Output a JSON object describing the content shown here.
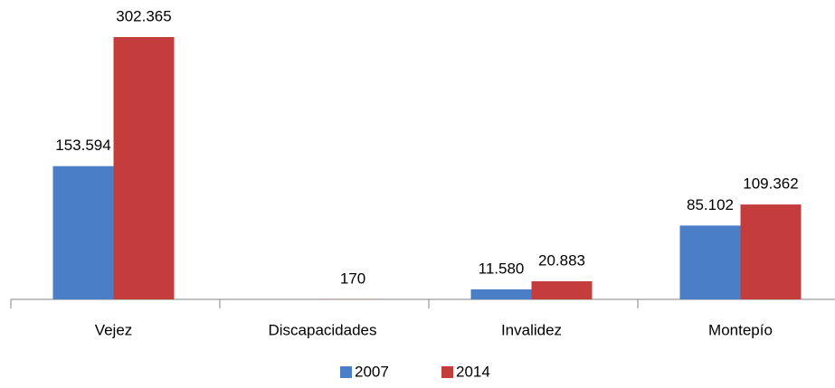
{
  "chart_data": {
    "type": "bar",
    "categories": [
      "Vejez",
      "Discapacidades",
      "Invalidez",
      "Montepío"
    ],
    "series": [
      {
        "name": "2007",
        "color": "#4a7ec6",
        "values": [
          153594,
          null,
          11580,
          85102
        ],
        "value_labels": [
          "153.594",
          null,
          "11.580",
          "85.102"
        ]
      },
      {
        "name": "2014",
        "color": "#c43c3c",
        "values": [
          302365,
          170,
          20883,
          109362
        ],
        "value_labels": [
          "302.365",
          "170",
          "20.883",
          "109.362"
        ]
      }
    ]
  }
}
